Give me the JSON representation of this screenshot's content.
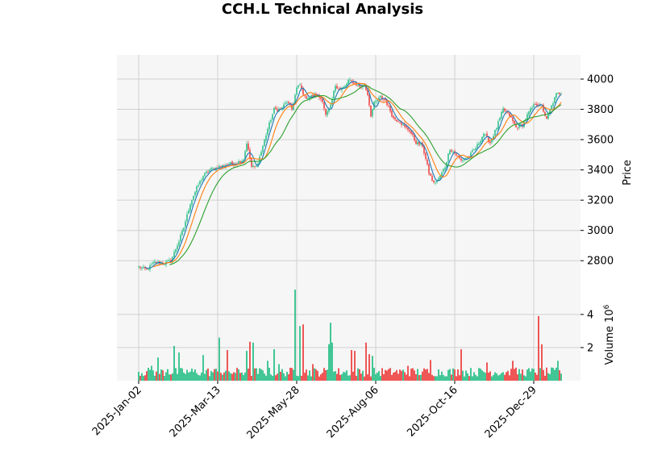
{
  "chart_data": {
    "title": "CCH.L Technical Analysis",
    "type": "candlestick",
    "price_panel": {
      "ylabel": "Price",
      "ylim": [
        2620,
        4160
      ],
      "yticks": [
        2800,
        3000,
        3200,
        3400,
        3600,
        3800,
        4000
      ],
      "grid": true,
      "anchors": [
        [
          0,
          2760
        ],
        [
          5,
          2740
        ],
        [
          10,
          2790
        ],
        [
          15,
          2780
        ],
        [
          20,
          2800
        ],
        [
          25,
          2930
        ],
        [
          28,
          3020
        ],
        [
          32,
          3180
        ],
        [
          36,
          3280
        ],
        [
          40,
          3360
        ],
        [
          44,
          3400
        ],
        [
          50,
          3420
        ],
        [
          56,
          3440
        ],
        [
          60,
          3440
        ],
        [
          65,
          3470
        ],
        [
          67,
          3580
        ],
        [
          70,
          3420
        ],
        [
          73,
          3420
        ],
        [
          76,
          3520
        ],
        [
          80,
          3670
        ],
        [
          84,
          3800
        ],
        [
          88,
          3800
        ],
        [
          92,
          3850
        ],
        [
          95,
          3800
        ],
        [
          98,
          3940
        ],
        [
          100,
          3960
        ],
        [
          103,
          3880
        ],
        [
          106,
          3880
        ],
        [
          110,
          3900
        ],
        [
          114,
          3860
        ],
        [
          116,
          3760
        ],
        [
          119,
          3820
        ],
        [
          122,
          3960
        ],
        [
          125,
          3930
        ],
        [
          128,
          3950
        ],
        [
          130,
          3990
        ],
        [
          133,
          3980
        ],
        [
          137,
          3950
        ],
        [
          140,
          3960
        ],
        [
          142,
          3900
        ],
        [
          144,
          3760
        ],
        [
          146,
          3840
        ],
        [
          150,
          3880
        ],
        [
          153,
          3860
        ],
        [
          156,
          3790
        ],
        [
          158,
          3740
        ],
        [
          162,
          3720
        ],
        [
          165,
          3680
        ],
        [
          168,
          3660
        ],
        [
          172,
          3580
        ],
        [
          176,
          3560
        ],
        [
          180,
          3380
        ],
        [
          183,
          3310
        ],
        [
          186,
          3340
        ],
        [
          190,
          3420
        ],
        [
          193,
          3540
        ],
        [
          197,
          3500
        ],
        [
          200,
          3460
        ],
        [
          205,
          3490
        ],
        [
          210,
          3560
        ],
        [
          214,
          3640
        ],
        [
          218,
          3580
        ],
        [
          222,
          3680
        ],
        [
          226,
          3800
        ],
        [
          230,
          3760
        ],
        [
          234,
          3680
        ],
        [
          238,
          3700
        ],
        [
          242,
          3780
        ],
        [
          246,
          3840
        ],
        [
          250,
          3820
        ],
        [
          253,
          3730
        ],
        [
          256,
          3820
        ],
        [
          259,
          3900
        ],
        [
          262,
          3910
        ]
      ]
    },
    "volume_panel": {
      "ylabel": "Volume  10^6",
      "ylim": [
        0,
        5.6
      ],
      "yticks": [
        2,
        4
      ],
      "grid": true,
      "spikes": [
        [
          8,
          0.9
        ],
        [
          12,
          1.4
        ],
        [
          18,
          0.7
        ],
        [
          22,
          2.1
        ],
        [
          25,
          1.7
        ],
        [
          40,
          1.55
        ],
        [
          50,
          2.6
        ],
        [
          55,
          1.85
        ],
        [
          67,
          1.8
        ],
        [
          69,
          2.35
        ],
        [
          71,
          2.3
        ],
        [
          80,
          1.2
        ],
        [
          84,
          1.9
        ],
        [
          87,
          1.0
        ],
        [
          97,
          5.5
        ],
        [
          100,
          3.3
        ],
        [
          102,
          3.4
        ],
        [
          108,
          1.0
        ],
        [
          118,
          2.2
        ],
        [
          119,
          3.5
        ],
        [
          120,
          2.3
        ],
        [
          132,
          1.85
        ],
        [
          134,
          1.8
        ],
        [
          141,
          2.3
        ],
        [
          143,
          1.6
        ],
        [
          145,
          1.5
        ],
        [
          167,
          0.9
        ],
        [
          181,
          1.25
        ],
        [
          200,
          1.9
        ],
        [
          216,
          1.1
        ],
        [
          232,
          1.2
        ],
        [
          248,
          3.9
        ],
        [
          250,
          2.2
        ],
        [
          260,
          1.2
        ]
      ]
    },
    "moving_averages": [
      {
        "window": 5,
        "color": "#1f77b4"
      },
      {
        "window": 10,
        "color": "#ff7f0e"
      },
      {
        "window": 20,
        "color": "#2ca02c"
      }
    ],
    "x_ticks": [
      {
        "index": 0,
        "label": "2025-Jan-02"
      },
      {
        "index": 49,
        "label": "2025-Mar-13"
      },
      {
        "index": 98,
        "label": "2025-May-28"
      },
      {
        "index": 147,
        "label": "2025-Aug-06"
      },
      {
        "index": 196,
        "label": "2025-Oct-16"
      },
      {
        "index": 245,
        "label": "2025-Dec-29"
      }
    ],
    "n_points": 263,
    "colors": {
      "up": "#2fc08a",
      "down": "#ee4444",
      "panel_bg": "#f6f6f6",
      "grid": "#d0d0d0"
    }
  }
}
